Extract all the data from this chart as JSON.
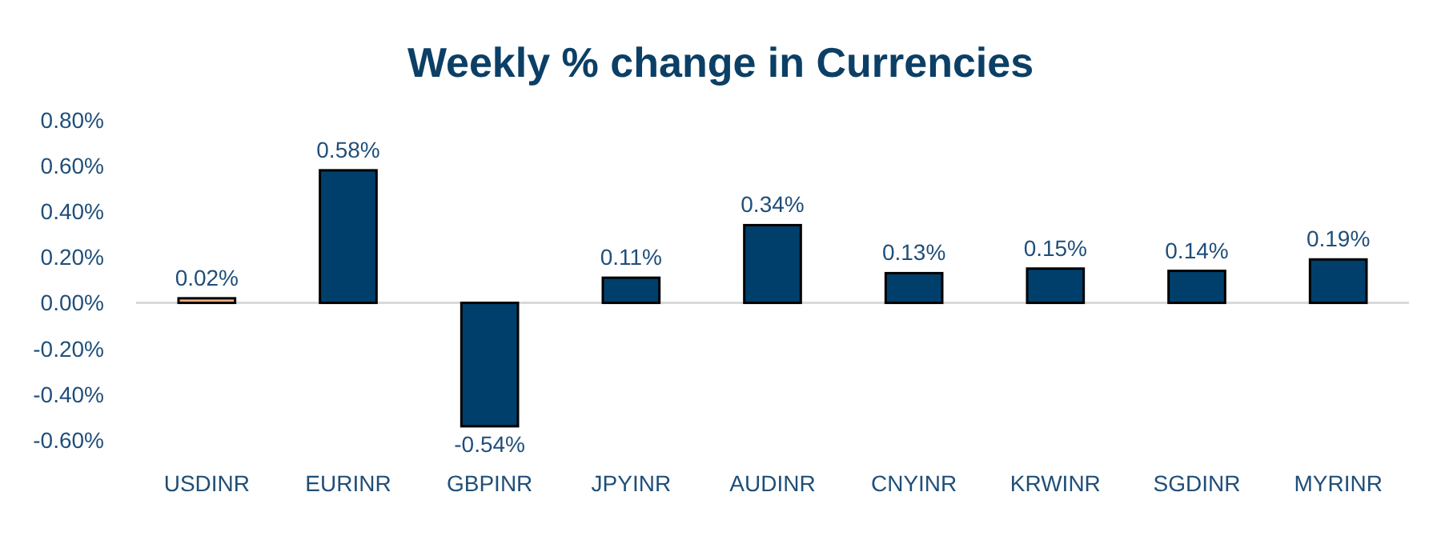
{
  "chart_data": {
    "type": "bar",
    "title": "Weekly % change in Currencies",
    "categories": [
      "USDINR",
      "EURINR",
      "GBPINR",
      "JPYINR",
      "AUDINR",
      "CNYINR",
      "KRWINR",
      "SGDINR",
      "MYRINR"
    ],
    "values": [
      0.02,
      0.58,
      -0.54,
      0.11,
      0.34,
      0.13,
      0.15,
      0.14,
      0.19
    ],
    "colors": [
      "#f4b183",
      "#003f6b",
      "#003f6b",
      "#003f6b",
      "#003f6b",
      "#003f6b",
      "#003f6b",
      "#003f6b",
      "#003f6b"
    ],
    "value_labels": [
      "0.02%",
      "0.58%",
      "-0.54%",
      "0.11%",
      "0.34%",
      "0.13%",
      "0.15%",
      "0.14%",
      "0.19%"
    ],
    "ylim": [
      -0.6,
      0.8
    ],
    "yticks": [
      {
        "value": -0.6,
        "label": "-0.60%"
      },
      {
        "value": -0.4,
        "label": "-0.40%"
      },
      {
        "value": -0.2,
        "label": "-0.20%"
      },
      {
        "value": 0,
        "label": "0.00%"
      },
      {
        "value": 0.2,
        "label": "0.20%"
      },
      {
        "value": 0.4,
        "label": "0.40%"
      },
      {
        "value": 0.6,
        "label": "0.60%"
      },
      {
        "value": 0.8,
        "label": "0.80%"
      }
    ]
  }
}
